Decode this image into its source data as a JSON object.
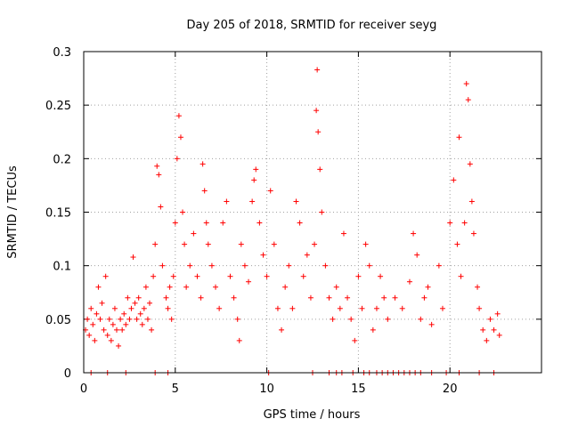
{
  "colors": {
    "series": "#ff0000",
    "axis": "#000000",
    "grid": "#a0a0a0"
  },
  "chart_data": {
    "type": "scatter",
    "title": "Day 205 of 2018, SRMTID for receiver seyg",
    "xlabel": "GPS time / hours",
    "ylabel": "SRMTID / TECUs",
    "xlim": [
      0,
      25
    ],
    "ylim": [
      0,
      0.3
    ],
    "xticks": [
      0,
      5,
      10,
      15,
      20
    ],
    "yticks": [
      0,
      0.05,
      0.1,
      0.15,
      0.2,
      0.25,
      0.3
    ],
    "xtick_labels": [
      "0",
      "5",
      "10",
      "15",
      "20"
    ],
    "ytick_labels": [
      "0",
      "0.05",
      "0.1",
      "0.15",
      "0.2",
      "0.25",
      "0.3"
    ],
    "grid": true,
    "marker": "+",
    "series": [
      {
        "name": "SRMTID",
        "points": [
          [
            0.1,
            0.04
          ],
          [
            0.2,
            0.05
          ],
          [
            0.3,
            0.035
          ],
          [
            0.4,
            0.06
          ],
          [
            0.5,
            0.045
          ],
          [
            0.6,
            0.03
          ],
          [
            0.7,
            0.055
          ],
          [
            0.8,
            0.08
          ],
          [
            0.9,
            0.05
          ],
          [
            1.0,
            0.065
          ],
          [
            1.1,
            0.04
          ],
          [
            1.2,
            0.09
          ],
          [
            1.3,
            0.035
          ],
          [
            1.4,
            0.05
          ],
          [
            1.5,
            0.03
          ],
          [
            1.6,
            0.045
          ],
          [
            1.7,
            0.06
          ],
          [
            1.8,
            0.04
          ],
          [
            1.9,
            0.025
          ],
          [
            2.0,
            0.05
          ],
          [
            2.1,
            0.04
          ],
          [
            2.2,
            0.055
          ],
          [
            2.3,
            0.045
          ],
          [
            2.4,
            0.07
          ],
          [
            2.5,
            0.05
          ],
          [
            2.6,
            0.06
          ],
          [
            2.7,
            0.108
          ],
          [
            2.8,
            0.065
          ],
          [
            2.9,
            0.05
          ],
          [
            3.0,
            0.07
          ],
          [
            3.1,
            0.055
          ],
          [
            3.2,
            0.045
          ],
          [
            3.3,
            0.06
          ],
          [
            3.4,
            0.08
          ],
          [
            3.5,
            0.05
          ],
          [
            3.6,
            0.065
          ],
          [
            3.7,
            0.04
          ],
          [
            3.8,
            0.09
          ],
          [
            3.9,
            0.12
          ],
          [
            4.0,
            0.193
          ],
          [
            4.1,
            0.185
          ],
          [
            4.2,
            0.155
          ],
          [
            4.3,
            0.1
          ],
          [
            4.5,
            0.07
          ],
          [
            4.6,
            0.06
          ],
          [
            4.7,
            0.08
          ],
          [
            4.8,
            0.05
          ],
          [
            4.9,
            0.09
          ],
          [
            5.0,
            0.14
          ],
          [
            5.1,
            0.2
          ],
          [
            5.2,
            0.24
          ],
          [
            5.3,
            0.22
          ],
          [
            5.4,
            0.15
          ],
          [
            5.5,
            0.12
          ],
          [
            5.6,
            0.08
          ],
          [
            5.8,
            0.1
          ],
          [
            6.0,
            0.13
          ],
          [
            6.2,
            0.09
          ],
          [
            6.4,
            0.07
          ],
          [
            6.5,
            0.195
          ],
          [
            6.6,
            0.17
          ],
          [
            6.7,
            0.14
          ],
          [
            6.8,
            0.12
          ],
          [
            7.0,
            0.1
          ],
          [
            7.2,
            0.08
          ],
          [
            7.4,
            0.06
          ],
          [
            7.6,
            0.14
          ],
          [
            7.8,
            0.16
          ],
          [
            8.0,
            0.09
          ],
          [
            8.2,
            0.07
          ],
          [
            8.4,
            0.05
          ],
          [
            8.5,
            0.03
          ],
          [
            8.6,
            0.12
          ],
          [
            8.8,
            0.1
          ],
          [
            9.0,
            0.085
          ],
          [
            9.2,
            0.16
          ],
          [
            9.3,
            0.18
          ],
          [
            9.4,
            0.19
          ],
          [
            9.6,
            0.14
          ],
          [
            9.8,
            0.11
          ],
          [
            10.0,
            0.09
          ],
          [
            10.2,
            0.17
          ],
          [
            10.4,
            0.12
          ],
          [
            10.6,
            0.06
          ],
          [
            10.8,
            0.04
          ],
          [
            11.0,
            0.08
          ],
          [
            11.2,
            0.1
          ],
          [
            11.4,
            0.06
          ],
          [
            11.6,
            0.16
          ],
          [
            11.8,
            0.14
          ],
          [
            12.0,
            0.09
          ],
          [
            12.2,
            0.11
          ],
          [
            12.4,
            0.07
          ],
          [
            12.6,
            0.12
          ],
          [
            12.7,
            0.245
          ],
          [
            12.75,
            0.283
          ],
          [
            12.8,
            0.225
          ],
          [
            12.9,
            0.19
          ],
          [
            13.0,
            0.15
          ],
          [
            13.2,
            0.1
          ],
          [
            13.4,
            0.07
          ],
          [
            13.6,
            0.05
          ],
          [
            13.8,
            0.08
          ],
          [
            14.0,
            0.06
          ],
          [
            14.2,
            0.13
          ],
          [
            14.4,
            0.07
          ],
          [
            14.6,
            0.05
          ],
          [
            14.8,
            0.03
          ],
          [
            15.0,
            0.09
          ],
          [
            15.2,
            0.06
          ],
          [
            15.4,
            0.12
          ],
          [
            15.6,
            0.1
          ],
          [
            15.8,
            0.04
          ],
          [
            16.0,
            0.06
          ],
          [
            16.2,
            0.09
          ],
          [
            16.4,
            0.07
          ],
          [
            16.6,
            0.05
          ],
          [
            17.0,
            0.07
          ],
          [
            17.4,
            0.06
          ],
          [
            17.8,
            0.085
          ],
          [
            18.0,
            0.13
          ],
          [
            18.2,
            0.11
          ],
          [
            18.4,
            0.05
          ],
          [
            18.6,
            0.07
          ],
          [
            18.8,
            0.08
          ],
          [
            19.0,
            0.045
          ],
          [
            19.4,
            0.1
          ],
          [
            19.6,
            0.06
          ],
          [
            20.0,
            0.14
          ],
          [
            20.2,
            0.18
          ],
          [
            20.4,
            0.12
          ],
          [
            20.5,
            0.22
          ],
          [
            20.6,
            0.09
          ],
          [
            20.8,
            0.14
          ],
          [
            20.9,
            0.27
          ],
          [
            21.0,
            0.255
          ],
          [
            21.1,
            0.195
          ],
          [
            21.2,
            0.16
          ],
          [
            21.3,
            0.13
          ],
          [
            21.5,
            0.08
          ],
          [
            21.6,
            0.06
          ],
          [
            21.8,
            0.04
          ],
          [
            22.0,
            0.03
          ],
          [
            22.2,
            0.05
          ],
          [
            22.4,
            0.04
          ],
          [
            22.6,
            0.055
          ],
          [
            22.7,
            0.035
          ]
        ],
        "zero_points_x": [
          0.4,
          1.3,
          2.3,
          3.9,
          4.6,
          10.1,
          12.5,
          13.4,
          13.8,
          14.1,
          14.7,
          15.3,
          15.6,
          16.0,
          16.3,
          16.6,
          16.9,
          17.2,
          17.5,
          17.8,
          18.1,
          18.4,
          19.0,
          19.8,
          20.5,
          21.6,
          22.4
        ]
      }
    ]
  }
}
